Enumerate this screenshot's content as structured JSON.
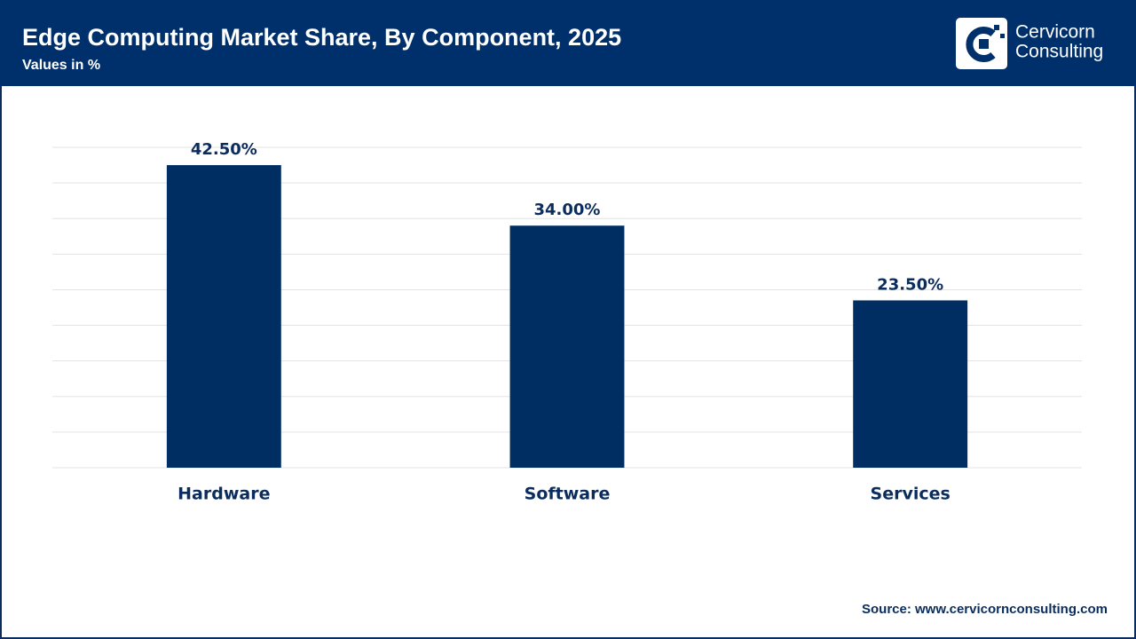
{
  "chart_data": {
    "type": "bar",
    "title": "Edge Computing Market Share, By Component, 2025",
    "subtitle": "Values in %",
    "categories": [
      "Hardware",
      "Software",
      "Services"
    ],
    "values": [
      42.5,
      34,
      23.5
    ],
    "value_labels": [
      "42.50%",
      "34.00%",
      "23.50%"
    ],
    "color": "#002d62",
    "ylim": [
      0,
      45
    ],
    "yticks": [
      0,
      5,
      10,
      15,
      20,
      25,
      30,
      35,
      40,
      45
    ],
    "grid": true,
    "source": "Source: www.cervicornconsulting.com"
  },
  "brand": [
    "Cervicorn",
    "Consulting"
  ]
}
